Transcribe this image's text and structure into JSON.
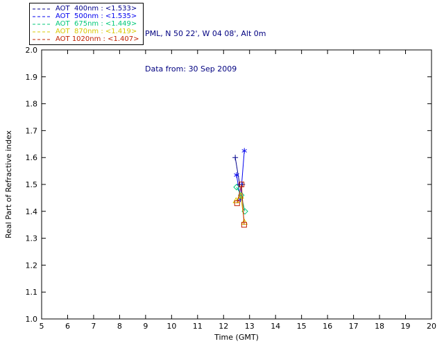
{
  "header": {
    "site_line": "PML, N 50 22', W 04 08', Alt 0m",
    "date_line": "Data from: 30 Sep 2009",
    "text_color": "#000080"
  },
  "legend": {
    "items": [
      {
        "label": "AOT  400nm : <1.533>",
        "color": "#00008B",
        "marker": "plus"
      },
      {
        "label": "AOT  500nm : <1.535>",
        "color": "#0000EE",
        "marker": "asterisk"
      },
      {
        "label": "AOT  675nm : <1.449>",
        "color": "#00C878",
        "marker": "diamond"
      },
      {
        "label": "AOT  870nm : <1.419>",
        "color": "#D8C800",
        "marker": "triangle"
      },
      {
        "label": "AOT 1020nm : <1.407>",
        "color": "#C02000",
        "marker": "square"
      }
    ]
  },
  "chart_data": {
    "type": "line",
    "title": "",
    "xlabel": "Time (GMT)",
    "ylabel": "Real Part of Refractive index",
    "xlim": [
      5,
      20
    ],
    "ylim": [
      1.0,
      2.0
    ],
    "xticks": [
      5,
      6,
      7,
      8,
      9,
      10,
      11,
      12,
      13,
      14,
      15,
      16,
      17,
      18,
      19,
      20
    ],
    "yticks": [
      1.0,
      1.1,
      1.2,
      1.3,
      1.4,
      1.5,
      1.6,
      1.7,
      1.8,
      1.9,
      2.0
    ],
    "grid": false,
    "legend_position": "top-left-outside",
    "series": [
      {
        "name": "AOT 400nm",
        "mean_label": "<1.533>",
        "color": "#00008B",
        "marker": "plus",
        "x": [
          12.45,
          12.62,
          12.72
        ],
        "y": [
          1.6,
          1.5,
          1.5
        ]
      },
      {
        "name": "AOT 500nm",
        "mean_label": "<1.535>",
        "color": "#0000EE",
        "marker": "asterisk",
        "x": [
          12.5,
          12.65,
          12.8
        ],
        "y": [
          1.535,
          1.445,
          1.625
        ]
      },
      {
        "name": "AOT 675nm",
        "mean_label": "<1.449>",
        "color": "#00C878",
        "marker": "diamond",
        "x": [
          12.5,
          12.68,
          12.82
        ],
        "y": [
          1.49,
          1.46,
          1.4
        ]
      },
      {
        "name": "AOT 870nm",
        "mean_label": "<1.419>",
        "color": "#D8C800",
        "marker": "triangle",
        "x": [
          12.48,
          12.66,
          12.8
        ],
        "y": [
          1.44,
          1.457,
          1.36
        ]
      },
      {
        "name": "AOT 1020nm",
        "mean_label": "<1.407>",
        "color": "#C02000",
        "marker": "square",
        "x": [
          12.52,
          12.69,
          12.79
        ],
        "y": [
          1.43,
          1.5,
          1.35
        ]
      }
    ]
  }
}
